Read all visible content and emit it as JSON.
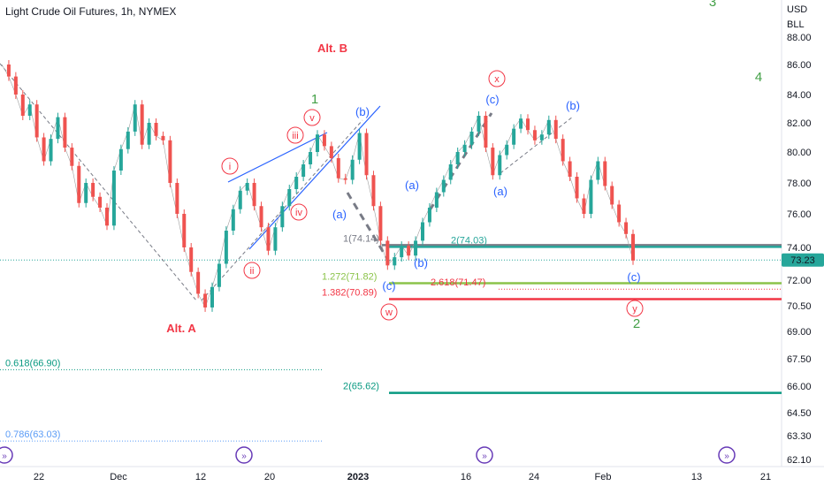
{
  "header": {
    "title": "Light Crude Oil Futures, 1h, NYMEX"
  },
  "axis": {
    "unit_top": "USD",
    "unit_bottom": "BLL"
  },
  "chart_data": {
    "type": "line",
    "title": "Light Crude Oil Futures, 1h, NYMEX",
    "ylim": [
      61.5,
      90.0
    ],
    "y_ticks": [
      "88.00",
      "86.00",
      "84.00",
      "82.00",
      "80.00",
      "78.00",
      "76.00",
      "74.00",
      "72.00",
      "70.50",
      "69.00",
      "67.50",
      "66.00",
      "64.50",
      "63.30",
      "62.10"
    ],
    "x_ticks": [
      "22",
      "Dec",
      "12",
      "20",
      "2023",
      "16",
      "24",
      "Feb",
      "13",
      "21"
    ],
    "x_ticks_bold": [
      "2023"
    ],
    "current_price": {
      "value": 73.23,
      "label": "73.23",
      "color": "#26a69a"
    },
    "series": [
      {
        "values": [
          86.0,
          85.2,
          84.0,
          82.5,
          83.3,
          81.0,
          79.4,
          80.9,
          82.4,
          80.3,
          79.1,
          76.7,
          78.0,
          77.1,
          76.4,
          75.3,
          78.8,
          80.2,
          81.4,
          83.3,
          80.5,
          82.0,
          81.1,
          80.8,
          78.0,
          76.0,
          74.0,
          72.5,
          71.2,
          70.4,
          71.6,
          73.0,
          75.0,
          76.3,
          77.5,
          78.0,
          76.5,
          75.2,
          73.8,
          75.2,
          76.5,
          77.6,
          78.4,
          79.2,
          80.0,
          81.2,
          80.4,
          79.6,
          78.3,
          78.2,
          79.5,
          81.3,
          78.5,
          76.5,
          74.4,
          72.9,
          73.4,
          74.1,
          73.5,
          74.4,
          75.5,
          76.4,
          77.4,
          78.2,
          79.2,
          80.0,
          80.5,
          81.4,
          82.5,
          80.3,
          78.5,
          79.8,
          80.5,
          81.6,
          82.3,
          81.5,
          80.8,
          81.2,
          82.2,
          80.9,
          79.4,
          78.4,
          77.0,
          76.0,
          78.2,
          79.4,
          77.8,
          76.6,
          75.5,
          74.8,
          73.2
        ]
      }
    ],
    "fib_levels": [
      {
        "label": "1(74.14)",
        "value": 74.14,
        "color": "#787b86"
      },
      {
        "label": "2(74.03)",
        "value": 74.03,
        "color": "#26a69a"
      },
      {
        "label": "1.272(71.82)",
        "value": 71.82,
        "color": "#8bc34a"
      },
      {
        "label": "2.618(71.47)",
        "value": 71.47,
        "color": "#f23645"
      },
      {
        "label": "1.382(70.89)",
        "value": 70.89,
        "color": "#f23645"
      },
      {
        "label": "0.618(66.90)",
        "value": 66.9,
        "color": "#089981"
      },
      {
        "label": "2(65.62)",
        "value": 65.62,
        "color": "#089981"
      },
      {
        "label": "0.786(63.03)",
        "value": 63.03,
        "color": "#5b9cf6"
      }
    ],
    "wave_labels": {
      "green": [
        "1",
        "2",
        "3",
        "4"
      ],
      "red_text": [
        "Alt. B",
        "Alt. A"
      ],
      "red_circled": [
        "i",
        "ii",
        "iii",
        "iv",
        "v",
        "x",
        "w",
        "y"
      ],
      "blue": [
        "(b)",
        "(a)",
        "(b)",
        "(c)",
        "(a)",
        "(c)",
        "(a)",
        "(b)",
        "(c)"
      ]
    },
    "grid": false,
    "legend": "none"
  },
  "colors": {
    "up": "#26a69a",
    "down": "#ef5350",
    "red_label": "#f23645",
    "green_label": "#43a047",
    "blue_label": "#2962ff",
    "channel": "#2962ff"
  }
}
